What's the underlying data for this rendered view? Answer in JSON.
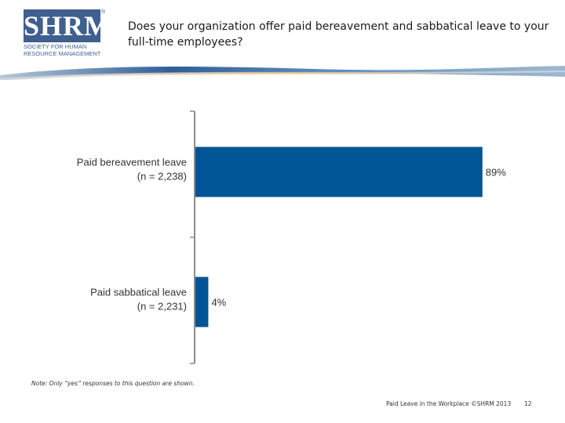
{
  "header": {
    "logo_mark": "SHRM",
    "logo_reg": "®",
    "logo_sub_lines": [
      "SOCIETY FOR HUMAN",
      "RESOURCE MANAGEMENT"
    ],
    "title": "Does your organization offer paid bereavement and sabbatical leave to your full-time employees?"
  },
  "colors": {
    "bar": "#005596",
    "axis": "#8c8c8c",
    "brand": "#3f5f8f"
  },
  "chart_data": {
    "type": "bar",
    "orientation": "horizontal",
    "categories": [
      [
        "Paid bereavement leave",
        "(n = 2,238)"
      ],
      [
        "Paid sabbatical leave",
        "(n = 2,231)"
      ]
    ],
    "values": [
      89,
      4
    ],
    "value_labels": [
      "89%",
      "4%"
    ],
    "xlim": [
      0,
      100
    ],
    "grid": false,
    "title": "",
    "xlabel": "",
    "ylabel": ""
  },
  "footer": {
    "note": "Note: Only “yes” responses to this question are shown.",
    "source": "Paid Leave in the Workplace ©SHRM 2013",
    "page_number": "12"
  }
}
